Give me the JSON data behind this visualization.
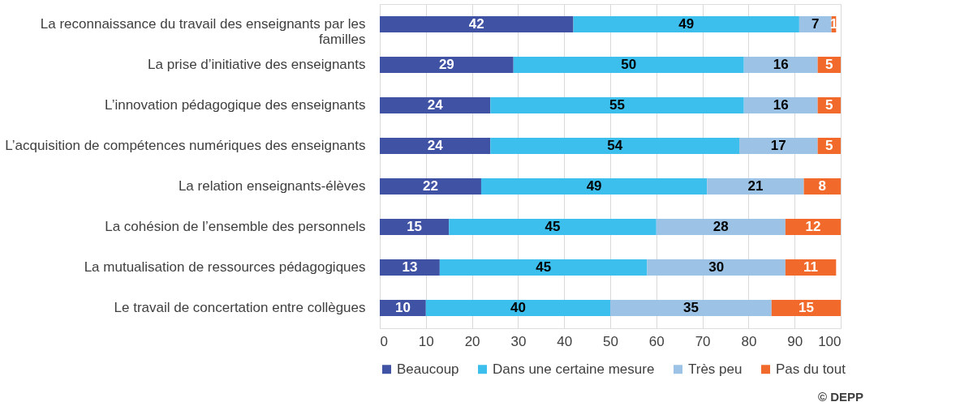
{
  "chart_data": {
    "type": "bar",
    "orientation": "horizontal",
    "stacked": true,
    "data_labels": true,
    "grid": "x",
    "legend": "bottom",
    "categories": [
      "La reconnaissance du travail des enseignants par les familles",
      "La prise d’initiative des enseignants",
      "L’innovation pédagogique des enseignants",
      "L’acquisition de compétences numériques des enseignants",
      "La relation enseignants-élèves",
      "La cohésion de l’ensemble des personnels",
      "La mutualisation de ressources pédagogiques",
      "Le travail de concertation entre collègues"
    ],
    "series": [
      {
        "name": "Beaucoup",
        "color": "#3f52a4",
        "values": [
          42,
          29,
          24,
          24,
          22,
          15,
          13,
          10
        ]
      },
      {
        "name": "Dans une certaine mesure",
        "color": "#3dbfee",
        "values": [
          49,
          50,
          55,
          54,
          49,
          45,
          45,
          40
        ]
      },
      {
        "name": "Très peu",
        "color": "#9cc3e5",
        "values": [
          7,
          16,
          16,
          17,
          21,
          28,
          30,
          35
        ]
      },
      {
        "name": "Pas du tout",
        "color": "#f26a2b",
        "values": [
          1,
          5,
          5,
          5,
          8,
          12,
          11,
          15
        ]
      }
    ],
    "xlim": [
      0,
      100
    ],
    "xticks": [
      0,
      10,
      20,
      30,
      40,
      50,
      60,
      70,
      80,
      90,
      100
    ],
    "annotations": [
      "© DEPP"
    ]
  }
}
